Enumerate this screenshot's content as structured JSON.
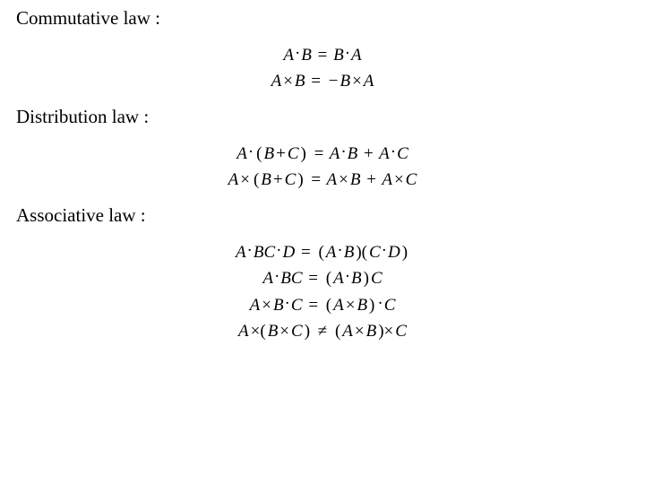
{
  "text_color": "#000000",
  "background_color": "#ffffff",
  "heading_fontsize": 21,
  "equation_fontsize": 19,
  "font_family": "Times New Roman",
  "sections": {
    "commutative": {
      "title": "Commutative law :",
      "eq1": "A · B = B · A",
      "eq2": "A × B = −B × A"
    },
    "distribution": {
      "title": "Distribution law :",
      "eq1": "A · (B + C) = A · B + A · C",
      "eq2": "A × (B + C) = A × B + A × C"
    },
    "associative": {
      "title": "Associative law :",
      "eq1": "A · BC · D = (A · B)(C · D)",
      "eq2": "A · BC = (A · B)C",
      "eq3": "A × B · C = (A × B) · C",
      "eq4": "A × (B × C) ≠ (A × B) × C"
    }
  }
}
